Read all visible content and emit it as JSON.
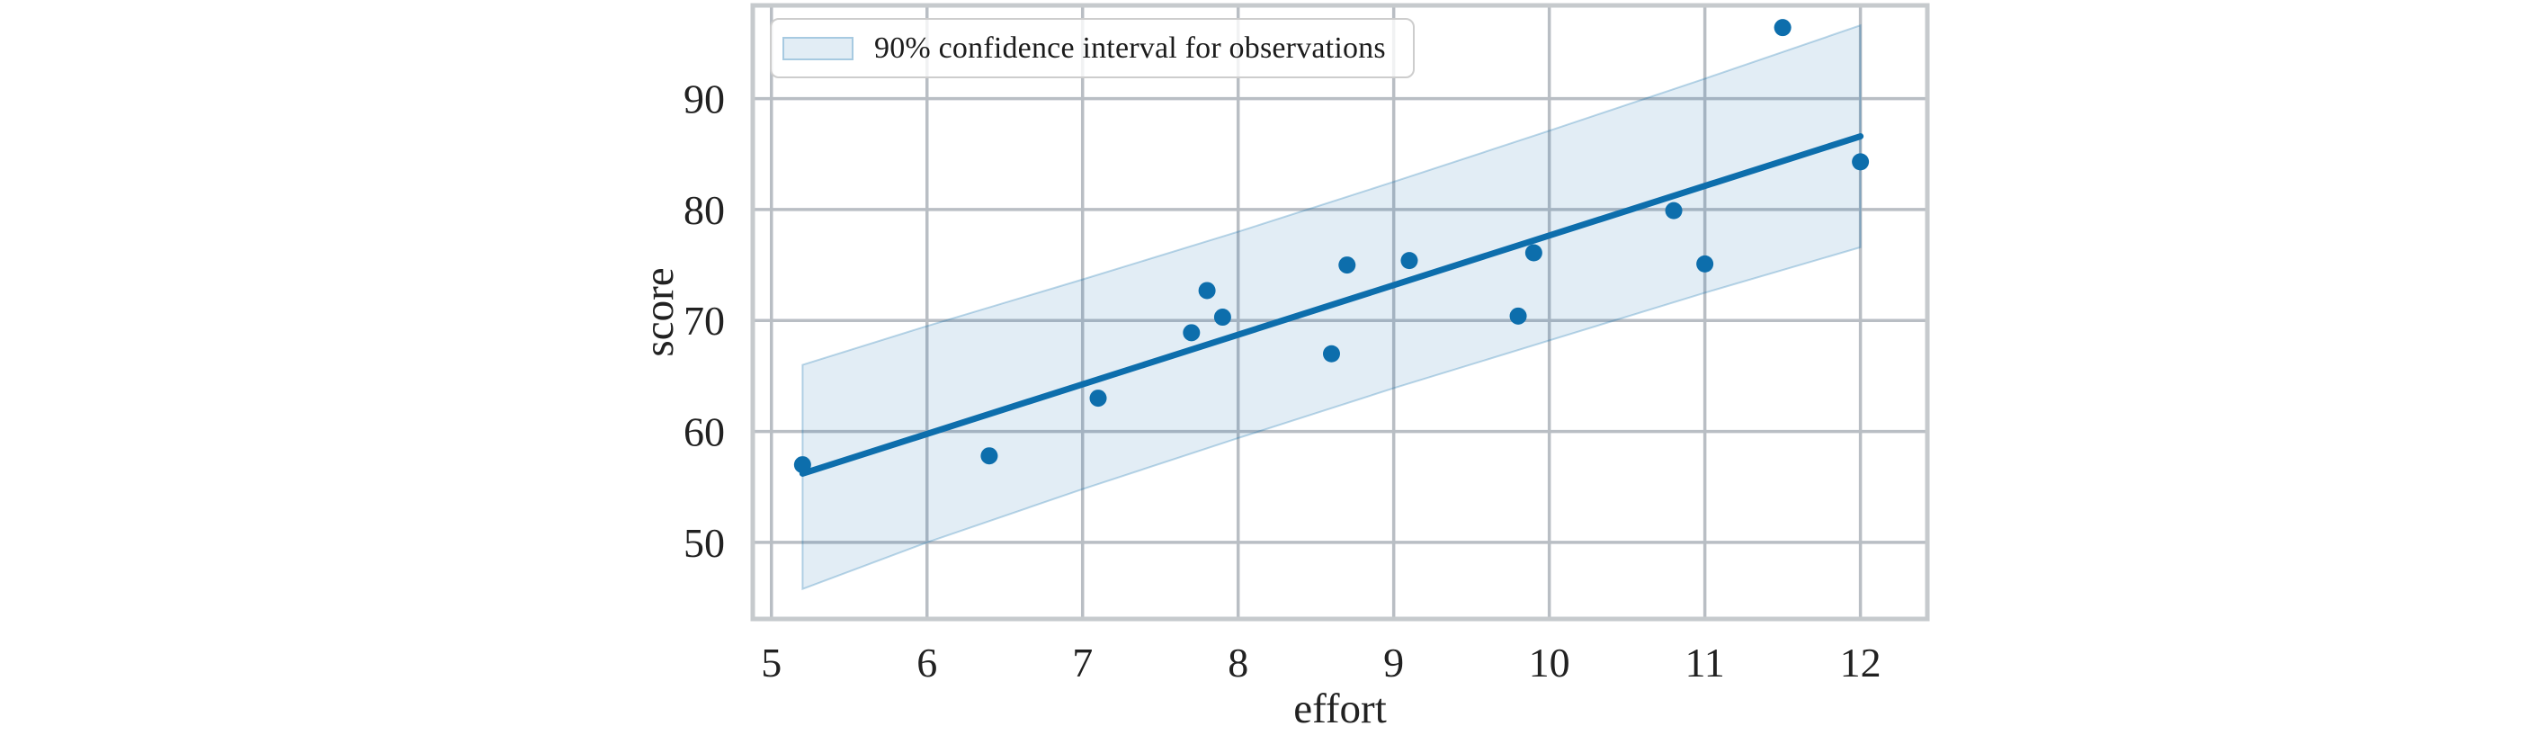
{
  "chart_data": {
    "type": "scatter",
    "title": "",
    "xlabel": "effort",
    "ylabel": "score",
    "xlim": [
      4.88,
      12.43
    ],
    "ylim": [
      43.1,
      98.4
    ],
    "x_ticks": [
      5,
      6,
      7,
      8,
      9,
      10,
      11,
      12
    ],
    "y_ticks": [
      50,
      60,
      70,
      80,
      90
    ],
    "grid": true,
    "legend": {
      "label": "90% confidence interval for observations",
      "position": "upper left"
    },
    "points": {
      "x": [
        5.2,
        6.4,
        7.1,
        7.7,
        7.8,
        7.9,
        8.6,
        8.7,
        9.1,
        9.8,
        9.9,
        10.8,
        11.0,
        11.5,
        12.0
      ],
      "y": [
        57.0,
        57.8,
        63.0,
        68.9,
        72.7,
        70.3,
        67.0,
        75.0,
        75.4,
        70.4,
        76.1,
        79.9,
        75.1,
        96.4,
        84.3
      ]
    },
    "regression_line": {
      "x": [
        5.2,
        12.0
      ],
      "y": [
        56.2,
        86.6
      ]
    },
    "confidence_band": {
      "level": "90%",
      "x": [
        5.2,
        6.0,
        7.0,
        8.0,
        8.6,
        9.0,
        10.0,
        11.0,
        12.0
      ],
      "upper": [
        66.0,
        69.5,
        73.7,
        78.0,
        80.7,
        82.5,
        87.1,
        91.8,
        96.6
      ],
      "lower": [
        45.8,
        50.0,
        54.8,
        59.4,
        62.1,
        63.9,
        68.2,
        72.5,
        76.6
      ]
    },
    "colors": {
      "point": "#0d6eac",
      "line": "#0d6eac",
      "band_fill": "rgba(13,110,172,0.12)",
      "band_edge": "rgba(13,110,172,0.28)",
      "grid": "#b9bec4",
      "spine": "#c6cacd",
      "text": "#212121"
    }
  }
}
